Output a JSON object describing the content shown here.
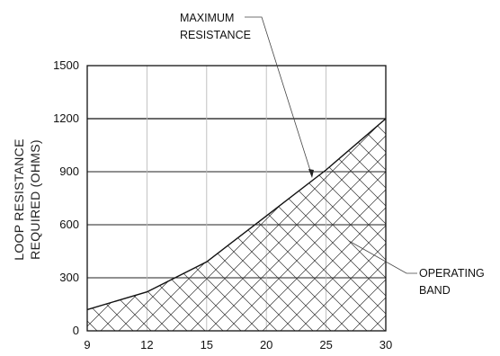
{
  "chart_data": {
    "type": "area",
    "title": "",
    "xlabel": "",
    "ylabel": [
      "LOOP RESISTANCE",
      "REQUIRED (OHMS)"
    ],
    "x": [
      9,
      12,
      15,
      20,
      25,
      30
    ],
    "x_ticks": [
      "9",
      "12",
      "15",
      "20",
      "25",
      "30"
    ],
    "y_ticks": [
      "0",
      "300",
      "600",
      "900",
      "1200",
      "1500"
    ],
    "ylim": [
      0,
      1500
    ],
    "series": [
      {
        "values": [
          120,
          220,
          390,
          650,
          910,
          1200
        ]
      }
    ],
    "fill": "cross-hatch below curve",
    "grid": true,
    "annotations": [
      {
        "lines": [
          "MAXIMUM",
          "RESISTANCE"
        ],
        "points_to": "curve"
      },
      {
        "lines": [
          "OPERATING",
          "BAND"
        ],
        "points_to": "hatched area"
      }
    ]
  }
}
